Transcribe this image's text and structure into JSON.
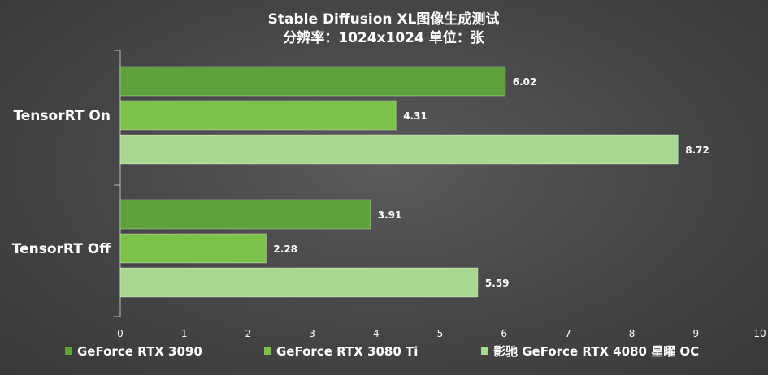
{
  "chart_data": {
    "type": "bar",
    "orientation": "horizontal",
    "title": "Stable Diffusion XL图像生成测试",
    "subtitle": "分辨率：1024x1024 单位：张",
    "categories": [
      "TensorRT On",
      "TensorRT Off"
    ],
    "series": [
      {
        "name": "GeForce RTX 3090",
        "color": "#5fa13a",
        "values": [
          6.02,
          3.91
        ]
      },
      {
        "name": "GeForce RTX 3080 Ti",
        "color": "#7cc24a",
        "values": [
          4.31,
          2.28
        ]
      },
      {
        "name": "影驰 GeForce RTX 4080 星曜 OC",
        "color": "#a9d690",
        "values": [
          8.72,
          5.59
        ]
      }
    ],
    "xlim": [
      0,
      10
    ],
    "xticks": [
      "0",
      "1",
      "2",
      "3",
      "4",
      "5",
      "6",
      "7",
      "8",
      "9",
      "10"
    ],
    "grid": false,
    "legend_position": "bottom"
  }
}
